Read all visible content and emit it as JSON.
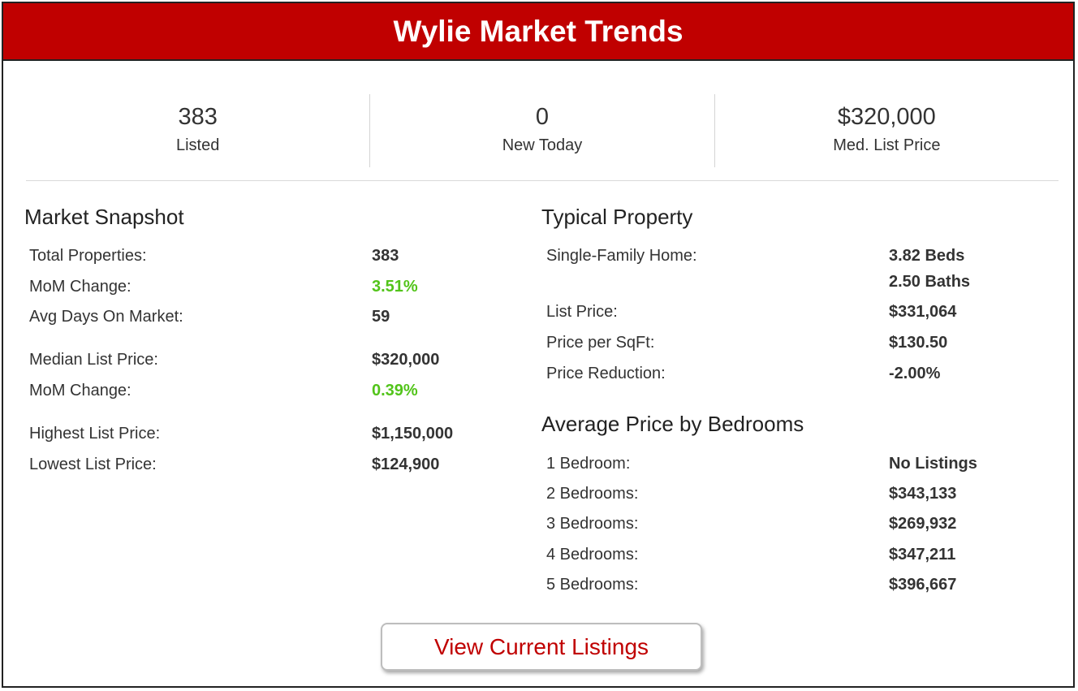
{
  "title": "Wylie Market Trends",
  "stats": [
    {
      "value": "383",
      "label": "Listed"
    },
    {
      "value": "0",
      "label": "New Today"
    },
    {
      "value": "$320,000",
      "label": "Med. List Price"
    }
  ],
  "snapshot": {
    "title": "Market Snapshot",
    "rows": [
      {
        "label": "Total Properties:",
        "value": "383"
      },
      {
        "label": "MoM Change:",
        "value": "3.51%",
        "positive": true
      },
      {
        "label": "Avg Days On Market:",
        "value": "59"
      },
      {
        "label": "Median List Price:",
        "value": "$320,000"
      },
      {
        "label": "MoM Change:",
        "value": "0.39%",
        "positive": true
      },
      {
        "label": "Highest List Price:",
        "value": "$1,150,000"
      },
      {
        "label": "Lowest List Price:",
        "value": "$124,900"
      }
    ]
  },
  "typical": {
    "title": "Typical Property",
    "home_label": "Single-Family Home:",
    "beds": "3.82 Beds",
    "baths": "2.50 Baths",
    "rows": [
      {
        "label": "List Price:",
        "value": "$331,064"
      },
      {
        "label": "Price per SqFt:",
        "value": "$130.50"
      },
      {
        "label": "Price Reduction:",
        "value": "-2.00%"
      }
    ]
  },
  "bedrooms": {
    "title": "Average Price by Bedrooms",
    "rows": [
      {
        "label": "1 Bedroom:",
        "value": "No Listings"
      },
      {
        "label": "2 Bedrooms:",
        "value": "$343,133"
      },
      {
        "label": "3 Bedrooms:",
        "value": "$269,932"
      },
      {
        "label": "4 Bedrooms:",
        "value": "$347,211"
      },
      {
        "label": "5 Bedrooms:",
        "value": "$396,667"
      }
    ]
  },
  "button_label": "View Current Listings",
  "colors": {
    "brand": "#c00000",
    "positive": "#52c41a"
  }
}
